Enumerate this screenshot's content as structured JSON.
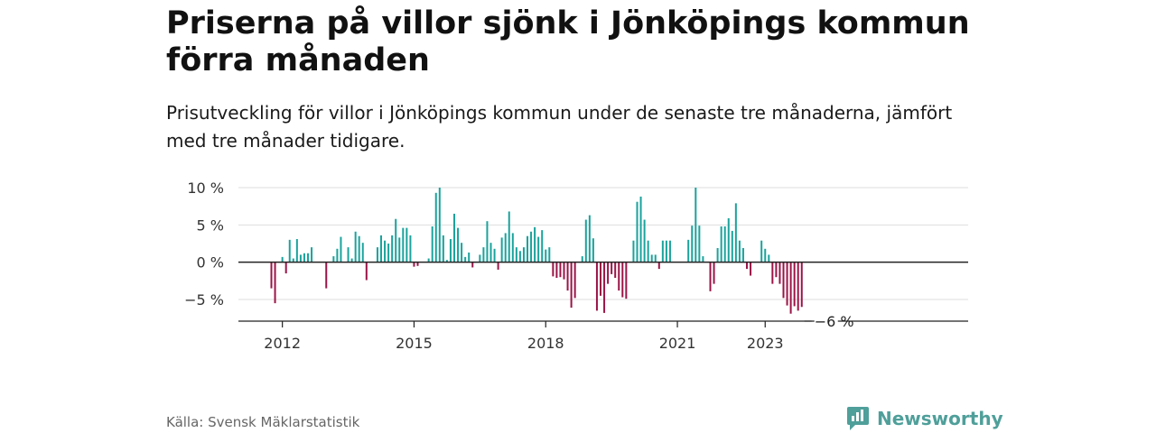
{
  "title": "Priserna på villor sjönk i Jönköpings kommun förra månaden",
  "subtitle": "Prisutveckling för villor i Jönköpings kommun under de senaste tre månaderna, jämfört med tre månader tidigare.",
  "source": "Källa: Svensk Mäklarstatistik",
  "brand": {
    "name": "Newsworthy",
    "icon": "newsworthy-logo-icon",
    "color": "#4f9f9a"
  },
  "chart_data": {
    "type": "bar",
    "y_unit": "%",
    "ylim": [
      -7.5,
      10.5
    ],
    "y_ticks": [
      {
        "value": 10,
        "label": "10 %"
      },
      {
        "value": 5,
        "label": "5 %"
      },
      {
        "value": 0,
        "label": "0 %"
      },
      {
        "value": -5,
        "label": "−5 %"
      }
    ],
    "x_ticks": [
      "2012",
      "2015",
      "2018",
      "2021",
      "2023"
    ],
    "x_start": "2011-10",
    "x_step": "month",
    "values": [
      -3.5,
      -5.5,
      0,
      0.7,
      -1.5,
      3,
      0.5,
      3.1,
      1,
      1.2,
      1.2,
      2,
      0,
      0,
      0,
      -3.5,
      0,
      0.8,
      1.8,
      3.4,
      0,
      2,
      0.5,
      4.1,
      3.5,
      2.6,
      -2.4,
      0,
      0,
      2,
      3.6,
      2.9,
      2.5,
      3.6,
      5.8,
      3.3,
      4.6,
      4.6,
      3.6,
      -0.6,
      -0.5,
      0,
      0,
      0.5,
      4.8,
      9.3,
      10,
      3.6,
      0.3,
      3.1,
      6.5,
      4.6,
      2.6,
      0.7,
      1.3,
      -0.7,
      0,
      1,
      2,
      5.5,
      2.6,
      1.8,
      -1,
      3.3,
      3.9,
      6.8,
      3.9,
      2,
      1.5,
      2,
      3.5,
      4.1,
      4.7,
      3.4,
      4.3,
      1.7,
      2,
      -1.9,
      -2.1,
      -2,
      -2.3,
      -3.8,
      -6.1,
      -4.8,
      0,
      0.8,
      5.7,
      6.3,
      3.2,
      -6.5,
      -4.5,
      -6.8,
      -2.9,
      -1.6,
      -2.1,
      -3.8,
      -4.7,
      -4.9,
      0,
      2.9,
      8.1,
      8.8,
      5.7,
      2.9,
      1,
      1,
      -0.9,
      2.9,
      2.9,
      2.9,
      0,
      0,
      0,
      0,
      3,
      4.9,
      10,
      4.9,
      0.8,
      0,
      -3.9,
      -2.9,
      1.9,
      4.8,
      4.8,
      5.9,
      4.2,
      7.9,
      2.9,
      1.9,
      -0.9,
      -1.8,
      0,
      0,
      2.9,
      1.8,
      1,
      -2.9,
      -2,
      -2.9,
      -4.8,
      -5.8,
      -6.9,
      -5.9,
      -6.5,
      -6
    ],
    "last_value_label": "−6 %",
    "colors": {
      "positive": "#1aa39c",
      "negative": "#9b1446"
    },
    "grid": true,
    "legend": "none"
  }
}
